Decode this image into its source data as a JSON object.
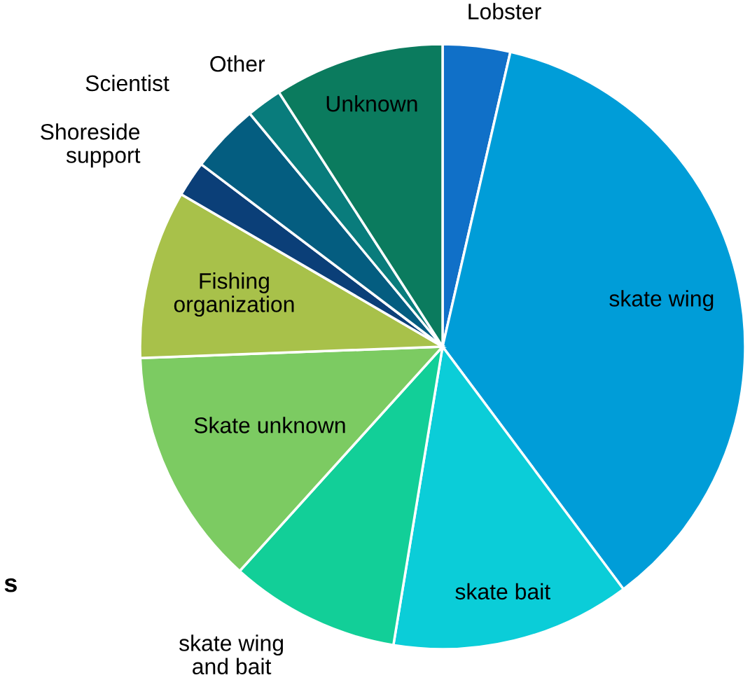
{
  "chart_data": {
    "type": "pie",
    "categories": [
      "Lobster",
      "skate wing",
      "skate bait",
      "skate wing\nand bait",
      "Skate unknown",
      "Fishing\norganization",
      "Shoreside\nsupport",
      "Scientist",
      "Other",
      "Unknown"
    ],
    "values": [
      3.6,
      36.2,
      12.8,
      9.1,
      12.7,
      9.0,
      1.9,
      3.7,
      1.9,
      9.1
    ],
    "colors": [
      "#1070c8",
      "#009dd8",
      "#0bcdd8",
      "#12cf98",
      "#7ccb62",
      "#a8c14a",
      "#0b3f78",
      "#045d80",
      "#097c7c",
      "#0b7b5e"
    ],
    "annotations": [
      "s"
    ]
  }
}
